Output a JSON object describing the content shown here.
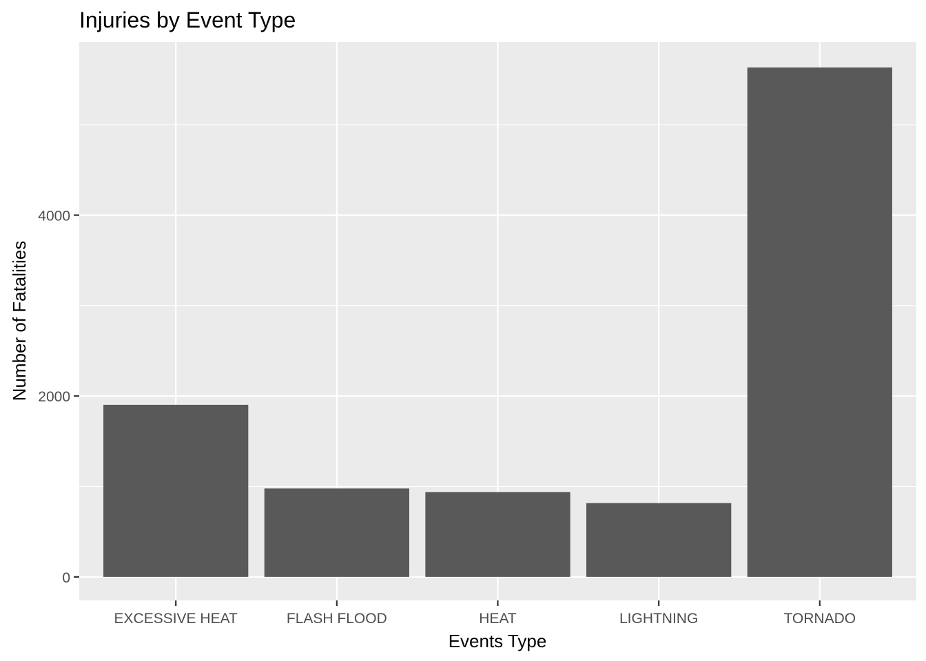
{
  "chart_data": {
    "type": "bar",
    "title": "Injuries by Event Type",
    "xlabel": "Events Type",
    "ylabel": "Number of Fatalities",
    "categories": [
      "EXCESSIVE HEAT",
      "FLASH FLOOD",
      "HEAT",
      "LIGHTNING",
      "TORNADO"
    ],
    "values": [
      1903,
      978,
      937,
      816,
      5633
    ],
    "ylim": [
      -260,
      5915
    ],
    "yticks": [
      0,
      2000,
      4000
    ],
    "ytick_labels": [
      "0",
      "2000",
      "4000"
    ],
    "y_minor_ticks": [
      1000,
      3000,
      5000
    ],
    "grid": true,
    "legend": "none",
    "colors": {
      "bar": "#595959",
      "panel": "#EBEBEB",
      "grid": "#FFFFFF"
    }
  }
}
